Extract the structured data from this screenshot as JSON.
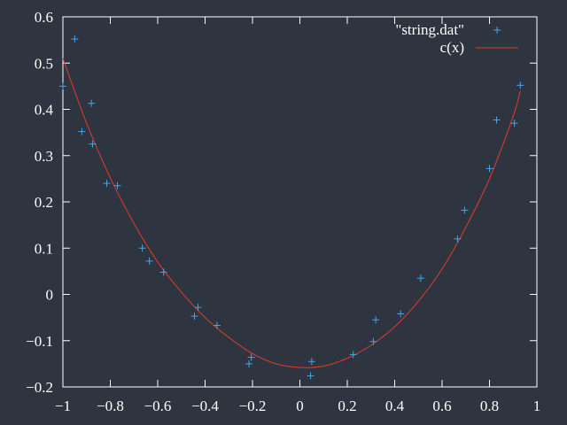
{
  "chart_data": {
    "type": "scatter",
    "title": "",
    "xlabel": "",
    "ylabel": "",
    "xlim": [
      -1,
      1
    ],
    "ylim": [
      -0.2,
      0.6
    ],
    "grid": false,
    "legend": "top-right",
    "x_ticks": [
      -1,
      -0.8,
      -0.6,
      -0.4,
      -0.2,
      0,
      0.2,
      0.4,
      0.6,
      0.8,
      1
    ],
    "x_tick_labels": [
      "−1",
      "−0.8",
      "−0.6",
      "−0.4",
      "−0.2",
      "0",
      "0.2",
      "0.4",
      "0.6",
      "0.8",
      "1"
    ],
    "y_ticks": [
      -0.2,
      -0.1,
      0,
      0.1,
      0.2,
      0.3,
      0.4,
      0.5,
      0.6
    ],
    "y_tick_labels": [
      "−0.2",
      "−0.1",
      "0",
      "0.1",
      "0.2",
      "0.3",
      "0.4",
      "0.5",
      "0.6"
    ],
    "series": [
      {
        "name": "\"string.dat\"",
        "kind": "points",
        "marker": "+",
        "color": "#4aa3e8",
        "points": [
          [
            -1.0,
            0.45
          ],
          [
            -0.95,
            0.552
          ],
          [
            -0.92,
            0.352
          ],
          [
            -0.88,
            0.413
          ],
          [
            -0.875,
            0.325
          ],
          [
            -0.815,
            0.24
          ],
          [
            -0.77,
            0.235
          ],
          [
            -0.665,
            0.1
          ],
          [
            -0.635,
            0.072
          ],
          [
            -0.575,
            0.048
          ],
          [
            -0.445,
            -0.047
          ],
          [
            -0.43,
            -0.028
          ],
          [
            -0.35,
            -0.067
          ],
          [
            -0.215,
            -0.15
          ],
          [
            -0.205,
            -0.136
          ],
          [
            0.045,
            -0.176
          ],
          [
            0.05,
            -0.145
          ],
          [
            0.225,
            -0.13
          ],
          [
            0.31,
            -0.102
          ],
          [
            0.32,
            -0.055
          ],
          [
            0.425,
            -0.042
          ],
          [
            0.51,
            0.035
          ],
          [
            0.665,
            0.12
          ],
          [
            0.695,
            0.182
          ],
          [
            0.8,
            0.272
          ],
          [
            0.83,
            0.377
          ],
          [
            0.905,
            0.37
          ],
          [
            0.93,
            0.452
          ]
        ]
      },
      {
        "name": "c(x)",
        "kind": "curve",
        "color": "#e8392b",
        "x": [
          -1.0,
          -0.9,
          -0.8,
          -0.7,
          -0.6,
          -0.5,
          -0.4,
          -0.3,
          -0.2,
          -0.1,
          0.0,
          0.1,
          0.2,
          0.3,
          0.4,
          0.5,
          0.6,
          0.7,
          0.8,
          0.9,
          0.93
        ],
        "values": [
          0.51,
          0.37,
          0.252,
          0.153,
          0.07,
          0.005,
          -0.05,
          -0.093,
          -0.128,
          -0.15,
          -0.158,
          -0.155,
          -0.138,
          -0.11,
          -0.07,
          -0.015,
          0.055,
          0.145,
          0.25,
          0.385,
          0.44
        ]
      }
    ]
  }
}
